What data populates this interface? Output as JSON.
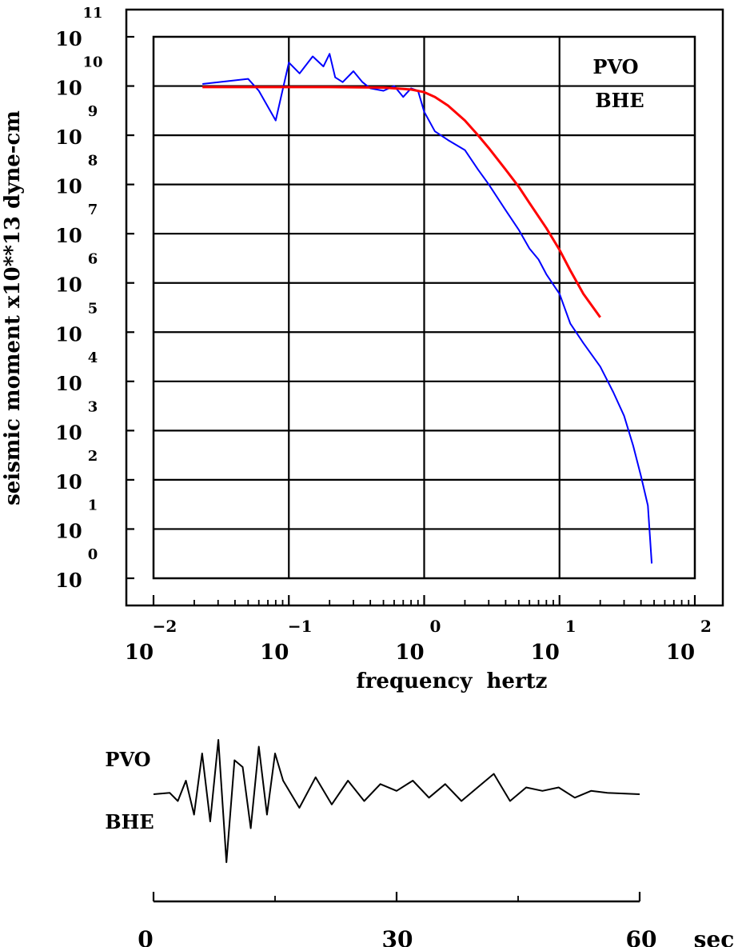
{
  "chart_data": [
    {
      "type": "line",
      "station": "PVO",
      "component": "BHE",
      "xlabel": "frequency  hertz",
      "ylabel": "seismic moment x10**13 dyne-cm",
      "x_scale": "log",
      "y_scale": "log",
      "xlim": [
        0.01,
        100
      ],
      "ylim": [
        1,
        100000000000
      ],
      "x_ticks": [
        {
          "base": "10",
          "exp": "−2"
        },
        {
          "base": "10",
          "exp": "−1"
        },
        {
          "base": "10",
          "exp": "0"
        },
        {
          "base": "10",
          "exp": "1"
        },
        {
          "base": "10",
          "exp": "2"
        }
      ],
      "y_ticks": [
        {
          "base": "10",
          "exp": "0"
        },
        {
          "base": "10",
          "exp": "1"
        },
        {
          "base": "10",
          "exp": "2"
        },
        {
          "base": "10",
          "exp": "3"
        },
        {
          "base": "10",
          "exp": "4"
        },
        {
          "base": "10",
          "exp": "5"
        },
        {
          "base": "10",
          "exp": "6"
        },
        {
          "base": "10",
          "exp": "7"
        },
        {
          "base": "10",
          "exp": "8"
        },
        {
          "base": "10",
          "exp": "9"
        },
        {
          "base": "10",
          "exp": "10"
        },
        {
          "base": "10",
          "exp": "11"
        }
      ],
      "grid": true,
      "series": [
        {
          "color": "#0000ff",
          "x": [
            0.023,
            0.05,
            0.06,
            0.08,
            0.1,
            0.12,
            0.15,
            0.18,
            0.2,
            0.22,
            0.25,
            0.3,
            0.35,
            0.4,
            0.5,
            0.6,
            0.7,
            0.8,
            0.9,
            1.0,
            1.2,
            1.5,
            2.0,
            2.5,
            3.0,
            4.0,
            5.0,
            6.0,
            7.0,
            8.0,
            10.0,
            12.0,
            15.0,
            20.0,
            25.0,
            30.0,
            35.0,
            40.0,
            45.0,
            48.0
          ],
          "y": [
            11000000000,
            14000000000,
            8000000000,
            2000000000,
            30000000000,
            18000000000,
            40000000000,
            25000000000,
            45000000000,
            15000000000,
            12000000000,
            20000000000,
            12000000000,
            9000000000,
            8000000000,
            10000000000,
            6000000000,
            9000000000,
            8000000000,
            3000000000,
            1200000000,
            800000000,
            500000000,
            200000000,
            100000000,
            30000000,
            12000000,
            5000000,
            3000000,
            1500000,
            600000,
            150000,
            60000,
            20000,
            6000,
            2000,
            500,
            120,
            30,
            2
          ]
        },
        {
          "color": "#ff0000",
          "x": [
            0.023,
            0.05,
            0.1,
            0.2,
            0.5,
            0.8,
            1.0,
            1.2,
            1.5,
            2.0,
            2.5,
            3.0,
            4.0,
            5.0,
            6.0,
            8.0,
            10.0,
            12.0,
            15.0,
            20.0
          ],
          "y": [
            9500000000,
            9500000000,
            9500000000,
            9500000000,
            9300000000,
            8500000000,
            7500000000,
            6000000000,
            4000000000,
            2000000000,
            1000000000,
            550000000,
            200000000,
            90000000,
            42000000,
            13000000,
            4700000,
            1800000,
            600000,
            200000
          ]
        }
      ]
    },
    {
      "type": "line",
      "station": "PVO",
      "component": "BHE",
      "xlabel": "sec",
      "xlim": [
        0,
        60
      ],
      "x_ticks": [
        "0",
        "30",
        "60"
      ],
      "series": [
        {
          "color": "#000000",
          "x": [
            0,
            2,
            3,
            4,
            5,
            6,
            7,
            8,
            9,
            10,
            11,
            12,
            13,
            14,
            15,
            16,
            18,
            20,
            22,
            24,
            26,
            28,
            30,
            32,
            34,
            36,
            38,
            40,
            42,
            43,
            44,
            46,
            48,
            50,
            52,
            54,
            56,
            58,
            60
          ],
          "y": [
            0,
            0.02,
            -0.1,
            0.2,
            -0.3,
            0.6,
            -0.4,
            0.8,
            -1.0,
            0.5,
            0.4,
            -0.5,
            0.7,
            -0.3,
            0.6,
            0.2,
            -0.2,
            0.25,
            -0.15,
            0.2,
            -0.1,
            0.15,
            0.05,
            0.2,
            -0.05,
            0.15,
            -0.1,
            0.1,
            0.3,
            0.1,
            -0.1,
            0.1,
            0.05,
            0.1,
            -0.05,
            0.05,
            0.02,
            0.01,
            0
          ]
        }
      ]
    }
  ]
}
